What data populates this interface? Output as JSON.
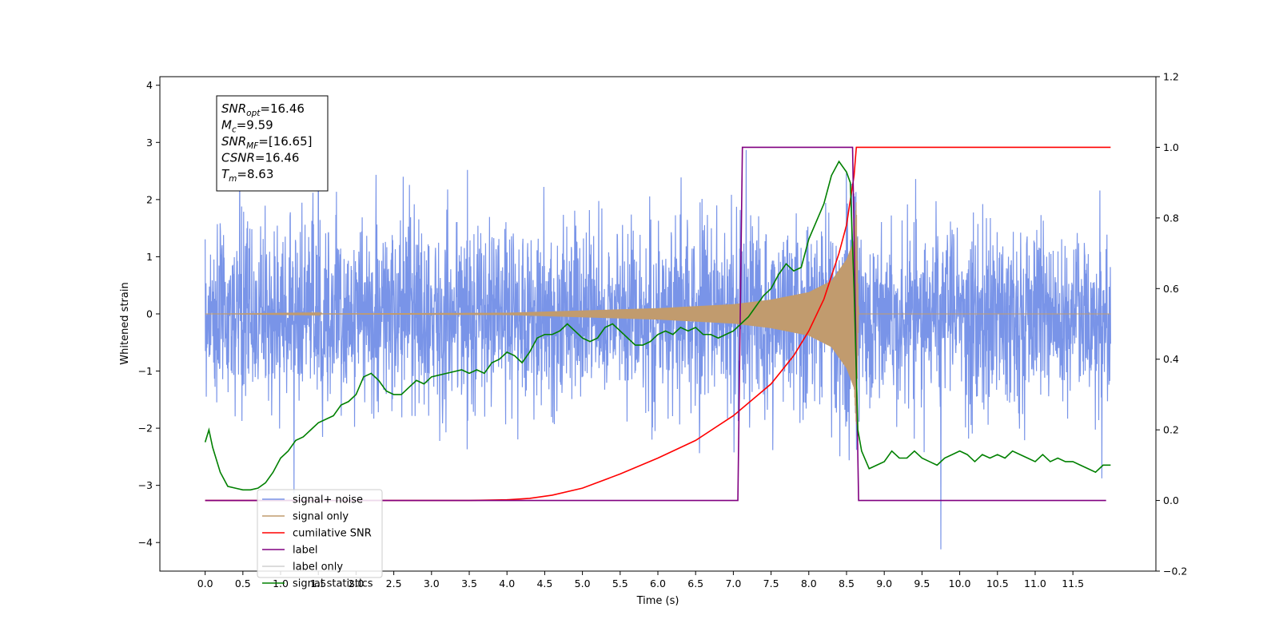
{
  "chart_data": {
    "type": "line",
    "xlabel": "Time (s)",
    "ylabel": "Whitened strain",
    "xlim": [
      -0.6,
      12.6
    ],
    "ylim": [
      -4.5,
      4.15
    ],
    "y2lim": [
      -0.2,
      1.2
    ],
    "xticks": [
      0.0,
      0.5,
      1.0,
      1.5,
      2.0,
      2.5,
      3.0,
      3.5,
      4.0,
      4.5,
      5.0,
      5.5,
      6.0,
      6.5,
      7.0,
      7.5,
      8.0,
      8.5,
      9.0,
      9.5,
      10.0,
      10.5,
      11.0,
      11.5
    ],
    "xtick_labels": [
      "0.0",
      "0.5",
      "1.0",
      "1.5",
      "2.0",
      "2.5",
      "3.0",
      "3.5",
      "4.0",
      "4.5",
      "5.0",
      "5.5",
      "6.0",
      "6.5",
      "7.0",
      "7.5",
      "8.0",
      "8.5",
      "9.0",
      "9.5",
      "10.0",
      "10.5",
      "11.0",
      "11.5"
    ],
    "yticks": [
      -4,
      -3,
      -2,
      -1,
      0,
      1,
      2,
      3,
      4
    ],
    "ytick_labels": [
      "−4",
      "−3",
      "−2",
      "−1",
      "0",
      "1",
      "2",
      "3",
      "4"
    ],
    "y2ticks": [
      -0.2,
      0.0,
      0.2,
      0.4,
      0.6,
      0.8,
      1.0,
      1.2
    ],
    "y2tick_labels": [
      "−0.2",
      "0.0",
      "0.2",
      "0.4",
      "0.6",
      "0.8",
      "1.0",
      "1.2"
    ],
    "legend_position": "lower-left",
    "grid": false,
    "annotation": {
      "lines": [
        {
          "base": "SNR",
          "sub": "opt",
          "rest": "=16.46"
        },
        {
          "base": "M",
          "sub": "c",
          "rest": "=9.59"
        },
        {
          "base": "SNR",
          "sub": "MF",
          "rest": "=[16.65]"
        },
        {
          "base": "CSNR",
          "sub": "",
          "rest": "=16.46"
        },
        {
          "base": "T",
          "sub": "m",
          "rest": "=8.63"
        }
      ]
    },
    "series": [
      {
        "name": "signal+ noise",
        "color": "#7994e8",
        "axis": "left",
        "time_range": [
          0.0,
          12.0
        ],
        "std": 0.8,
        "max": 3.77,
        "min": -4.12
      },
      {
        "name": "signal only",
        "color": "#c19b6e",
        "axis": "left",
        "time_range": [
          0.0,
          12.0
        ],
        "envelope": {
          "t": [
            0.0,
            4.0,
            5.0,
            6.0,
            7.0,
            7.5,
            8.0,
            8.3,
            8.5,
            8.6,
            8.63,
            8.66
          ],
          "amplitude": [
            0.0,
            0.02,
            0.06,
            0.1,
            0.17,
            0.25,
            0.38,
            0.58,
            0.95,
            1.3,
            2.0,
            0.0
          ]
        }
      },
      {
        "name": "cumilative SNR",
        "color": "#ff0000",
        "axis": "right",
        "x": [
          0.0,
          3.5,
          4.0,
          4.3,
          4.6,
          5.0,
          5.5,
          6.0,
          6.5,
          7.0,
          7.5,
          7.8,
          8.0,
          8.2,
          8.4,
          8.5,
          8.6,
          8.63,
          12.0
        ],
        "y": [
          0.0,
          0.0,
          0.002,
          0.006,
          0.015,
          0.035,
          0.075,
          0.12,
          0.17,
          0.24,
          0.33,
          0.41,
          0.48,
          0.57,
          0.7,
          0.78,
          0.92,
          1.0,
          1.0
        ]
      },
      {
        "name": "label",
        "color": "#800080",
        "axis": "right",
        "x": [
          0.0,
          7.06,
          7.12,
          8.58,
          8.66,
          11.94
        ],
        "y": [
          0.0,
          0.0,
          1.0,
          1.0,
          0.0,
          0.0
        ]
      },
      {
        "name": "label only",
        "color": "#d0d0d0",
        "axis": "right",
        "x": [],
        "y": []
      },
      {
        "name": "signal statistics",
        "color": "#008000",
        "axis": "right",
        "x": [
          0.0,
          0.05,
          0.1,
          0.2,
          0.3,
          0.4,
          0.5,
          0.6,
          0.7,
          0.8,
          0.9,
          1.0,
          1.1,
          1.2,
          1.3,
          1.4,
          1.5,
          1.6,
          1.7,
          1.8,
          1.9,
          2.0,
          2.1,
          2.2,
          2.3,
          2.4,
          2.5,
          2.6,
          2.7,
          2.8,
          2.9,
          3.0,
          3.2,
          3.4,
          3.5,
          3.6,
          3.7,
          3.8,
          3.9,
          4.0,
          4.1,
          4.2,
          4.3,
          4.4,
          4.5,
          4.6,
          4.7,
          4.8,
          4.9,
          5.0,
          5.1,
          5.2,
          5.3,
          5.4,
          5.5,
          5.6,
          5.7,
          5.8,
          5.9,
          6.0,
          6.1,
          6.2,
          6.3,
          6.4,
          6.5,
          6.6,
          6.7,
          6.8,
          6.9,
          7.0,
          7.1,
          7.2,
          7.3,
          7.4,
          7.5,
          7.6,
          7.7,
          7.8,
          7.9,
          8.0,
          8.1,
          8.2,
          8.3,
          8.4,
          8.5,
          8.55,
          8.6,
          8.65,
          8.7,
          8.8,
          8.9,
          9.0,
          9.1,
          9.2,
          9.3,
          9.4,
          9.5,
          9.6,
          9.7,
          9.8,
          9.9,
          10.0,
          10.1,
          10.2,
          10.3,
          10.4,
          10.5,
          10.6,
          10.7,
          10.8,
          10.9,
          11.0,
          11.1,
          11.2,
          11.3,
          11.4,
          11.5,
          11.6,
          11.7,
          11.8,
          11.9,
          12.0
        ],
        "y": [
          0.165,
          0.2,
          0.15,
          0.08,
          0.04,
          0.035,
          0.03,
          0.03,
          0.035,
          0.05,
          0.08,
          0.12,
          0.14,
          0.17,
          0.18,
          0.2,
          0.22,
          0.23,
          0.24,
          0.27,
          0.28,
          0.3,
          0.35,
          0.36,
          0.34,
          0.31,
          0.3,
          0.3,
          0.32,
          0.34,
          0.33,
          0.35,
          0.36,
          0.37,
          0.36,
          0.37,
          0.36,
          0.39,
          0.4,
          0.42,
          0.41,
          0.39,
          0.42,
          0.46,
          0.47,
          0.47,
          0.48,
          0.5,
          0.48,
          0.46,
          0.45,
          0.46,
          0.49,
          0.5,
          0.48,
          0.46,
          0.44,
          0.44,
          0.45,
          0.47,
          0.48,
          0.47,
          0.49,
          0.48,
          0.49,
          0.47,
          0.47,
          0.46,
          0.47,
          0.48,
          0.5,
          0.52,
          0.55,
          0.58,
          0.6,
          0.64,
          0.67,
          0.65,
          0.66,
          0.74,
          0.79,
          0.84,
          0.92,
          0.96,
          0.93,
          0.9,
          0.6,
          0.2,
          0.14,
          0.09,
          0.1,
          0.11,
          0.14,
          0.12,
          0.12,
          0.14,
          0.12,
          0.11,
          0.1,
          0.12,
          0.13,
          0.14,
          0.13,
          0.11,
          0.13,
          0.12,
          0.13,
          0.12,
          0.14,
          0.13,
          0.12,
          0.11,
          0.13,
          0.11,
          0.12,
          0.11,
          0.11,
          0.1,
          0.09,
          0.08,
          0.1,
          0.1
        ]
      }
    ]
  }
}
